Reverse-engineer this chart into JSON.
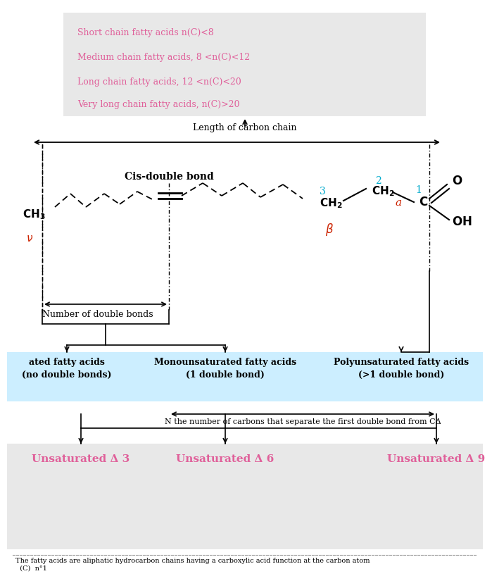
{
  "bg_color": "#ffffff",
  "top_box_color": "#e8e8e8",
  "cyan_box_color": "#cceeff",
  "bottom_box_color": "#e8e8e8",
  "pink_color": "#e0609a",
  "red_color": "#cc2200",
  "cyan_color": "#00aacc",
  "black_color": "#000000",
  "top_lines": [
    "Short chain fatty acids n(C)<8",
    "Medium chain fatty acids, 8 <n(C)<12",
    "Long chain fatty acids, 12 <n(C)<20",
    "Very long chain fatty acids, n(C)>20"
  ],
  "length_label": "Length of carbon chain",
  "num_db_label": "Number of double bonds",
  "cis_label": "Cis-double bond",
  "n_label": "N the number of carbons that separate the first double bond from CΔ",
  "unsat3": "Unsaturated Δ 3",
  "unsat6": "Unsaturated Δ 6",
  "unsat9": "Unsaturated Δ 9"
}
